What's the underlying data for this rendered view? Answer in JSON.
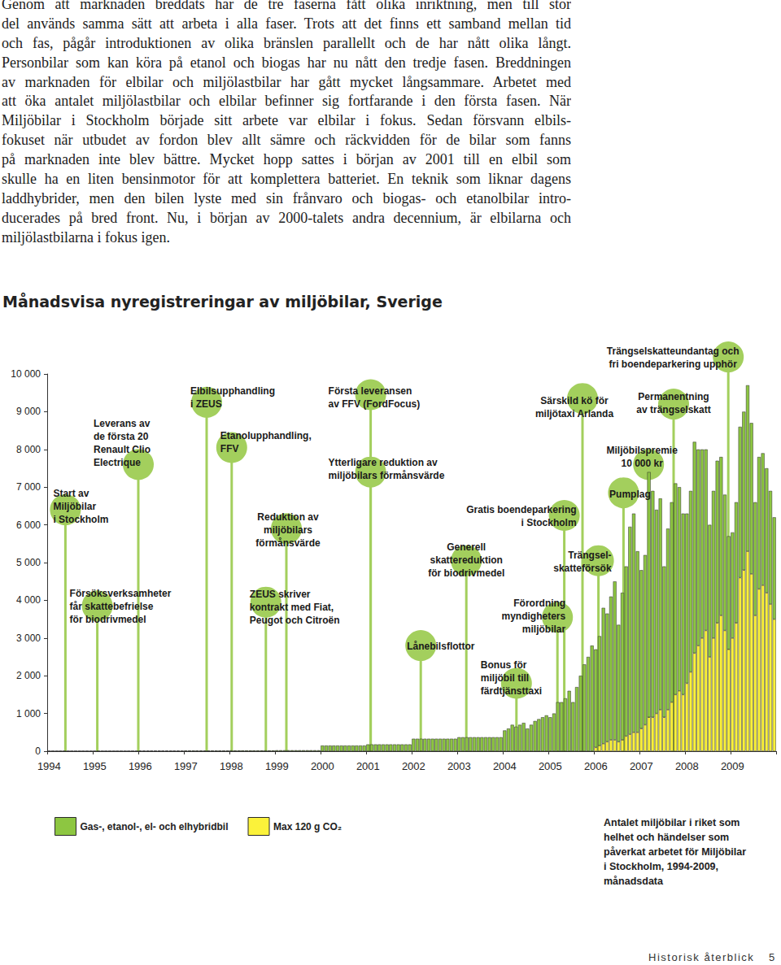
{
  "text": {
    "paragraph_lines": [
      "Genom att marknaden breddats har de tre faserna fått olika inriktning, men till stor",
      "del används samma sätt att arbeta i alla faser. Trots att det finns ett samband mellan tid",
      "och fas, pågår introduktionen av olika bränslen parallellt och de har nått olika långt.",
      "Personbilar som kan köra på etanol och biogas har nu nått den tredje fasen. Breddningen",
      "av marknaden för elbilar och miljölastbilar har gått mycket långsammare. Arbetet med",
      "att öka antalet miljölastbilar och elbilar befinner sig fortfarande i den första fasen. När",
      "Miljöbilar i Stockholm började sitt arbete var elbilar i fokus. Sedan försvann elbils-",
      "fokuset när utbudet av fordon blev allt sämre och räckvidden för de bilar som fanns",
      "på marknaden inte blev bättre. Mycket hopp sattes i början av 2001 till en elbil som",
      "skulle ha en liten bensinmotor för att komplettera batteriet. En teknik som liknar dagens",
      "laddhybrider, men den bilen lyste med sin frånvaro och biogas- och etanolbilar intro-",
      "ducerades på bred front. Nu, i början av 2000-talets andra decennium, är elbilarna och",
      "miljölastbilarna i fokus igen."
    ],
    "caption": "Antalet miljöbilar i riket som\nhelhet och händelser som\npåverkat arbetet för Miljöbilar\ni Stockholm, 1994-2009,\nmånadsdata",
    "footer": "Historisk återblick",
    "page": 5
  },
  "chart_data": {
    "type": "bar",
    "title": "Månadsvisa nyregistreringar av miljöbilar, Sverige",
    "stacked": true,
    "legend": "bottom-left",
    "categories": [
      "1994",
      null,
      null,
      null,
      null,
      null,
      null,
      null,
      null,
      null,
      null,
      null,
      "1995",
      null,
      null,
      null,
      null,
      null,
      null,
      null,
      null,
      null,
      null,
      null,
      "1996",
      null,
      null,
      null,
      null,
      null,
      null,
      null,
      null,
      null,
      null,
      null,
      "1997",
      null,
      null,
      null,
      null,
      null,
      null,
      null,
      null,
      null,
      null,
      null,
      "1998",
      null,
      null,
      null,
      null,
      null,
      null,
      null,
      null,
      null,
      null,
      null,
      "1999",
      null,
      null,
      null,
      null,
      null,
      null,
      null,
      null,
      null,
      null,
      null,
      "2000",
      null,
      null,
      null,
      null,
      null,
      null,
      null,
      null,
      null,
      null,
      null,
      "2001",
      null,
      null,
      null,
      null,
      null,
      null,
      null,
      null,
      null,
      null,
      null,
      "2002",
      null,
      null,
      null,
      null,
      null,
      null,
      null,
      null,
      null,
      null,
      null,
      "2003",
      null,
      null,
      null,
      null,
      null,
      null,
      null,
      null,
      null,
      null,
      null,
      "2004",
      null,
      null,
      null,
      null,
      null,
      null,
      null,
      null,
      null,
      null,
      null,
      "2005",
      null,
      null,
      null,
      null,
      null,
      null,
      null,
      null,
      null,
      null,
      null,
      "2006",
      null,
      null,
      null,
      null,
      null,
      null,
      null,
      null,
      null,
      null,
      null,
      "2007",
      null,
      null,
      null,
      null,
      null,
      null,
      null,
      null,
      null,
      null,
      null,
      "2008",
      null,
      null,
      null,
      null,
      null,
      null,
      null,
      null,
      null,
      null,
      null,
      "2009",
      null,
      null,
      null,
      null,
      null,
      null,
      null,
      null,
      null,
      null,
      null
    ],
    "series": [
      {
        "name": "Gas-, etanol-, el- och elhybridbil",
        "color": "#8dc641",
        "values": [
          0,
          0,
          0,
          0,
          0,
          0,
          0,
          0,
          0,
          0,
          0,
          0,
          0,
          0,
          0,
          0,
          0,
          0,
          0,
          0,
          0,
          0,
          0,
          0,
          10,
          10,
          10,
          10,
          10,
          10,
          10,
          10,
          10,
          10,
          10,
          10,
          15,
          15,
          15,
          15,
          15,
          15,
          15,
          15,
          15,
          15,
          15,
          15,
          20,
          20,
          20,
          20,
          20,
          20,
          20,
          20,
          20,
          20,
          20,
          20,
          25,
          25,
          25,
          25,
          25,
          25,
          25,
          25,
          25,
          25,
          25,
          25,
          150,
          150,
          150,
          150,
          150,
          150,
          150,
          150,
          150,
          150,
          150,
          150,
          180,
          180,
          180,
          180,
          180,
          180,
          180,
          180,
          180,
          180,
          180,
          180,
          330,
          330,
          330,
          330,
          330,
          330,
          330,
          330,
          330,
          330,
          330,
          330,
          370,
          370,
          370,
          370,
          370,
          370,
          370,
          370,
          370,
          370,
          370,
          370,
          550,
          600,
          700,
          650,
          700,
          750,
          600,
          700,
          800,
          850,
          900,
          950,
          900,
          1000,
          1300,
          1300,
          1400,
          1600,
          1300,
          1700,
          2000,
          2300,
          2500,
          2800,
          2600,
          2900,
          3600,
          3400,
          3800,
          4200,
          3100,
          3900,
          4500,
          5500,
          5800,
          4800,
          4200,
          4500,
          6500,
          6000,
          5400,
          5600,
          4000,
          4800,
          5300,
          5600,
          5400,
          4800,
          4500,
          4800,
          5600,
          5200,
          5000,
          4800,
          3500,
          3900,
          4300,
          4200,
          3600,
          3000,
          2800,
          3200,
          4000,
          4200,
          4400,
          4000,
          3000,
          3500,
          3500,
          3300,
          3000,
          2700
        ]
      },
      {
        "name": "Max 120 g CO₂",
        "color": "#fbf23a",
        "values": [
          0,
          0,
          0,
          0,
          0,
          0,
          0,
          0,
          0,
          0,
          0,
          0,
          0,
          0,
          0,
          0,
          0,
          0,
          0,
          0,
          0,
          0,
          0,
          0,
          0,
          0,
          0,
          0,
          0,
          0,
          0,
          0,
          0,
          0,
          0,
          0,
          0,
          0,
          0,
          0,
          0,
          0,
          0,
          0,
          0,
          0,
          0,
          0,
          0,
          0,
          0,
          0,
          0,
          0,
          0,
          0,
          0,
          0,
          0,
          0,
          0,
          0,
          0,
          0,
          0,
          0,
          0,
          0,
          0,
          0,
          0,
          0,
          0,
          0,
          0,
          0,
          0,
          0,
          0,
          0,
          0,
          0,
          0,
          0,
          0,
          0,
          0,
          0,
          0,
          0,
          0,
          0,
          0,
          0,
          0,
          0,
          0,
          0,
          0,
          0,
          0,
          0,
          0,
          0,
          0,
          0,
          0,
          0,
          0,
          0,
          0,
          0,
          0,
          0,
          0,
          0,
          0,
          0,
          0,
          0,
          0,
          0,
          0,
          0,
          0,
          0,
          0,
          0,
          0,
          0,
          0,
          0,
          0,
          0,
          0,
          0,
          0,
          0,
          0,
          0,
          0,
          0,
          0,
          0,
          100,
          150,
          200,
          250,
          300,
          300,
          250,
          300,
          400,
          450,
          500,
          500,
          600,
          700,
          900,
          900,
          1000,
          1100,
          900,
          1100,
          1300,
          1500,
          1600,
          1500,
          1800,
          2100,
          2600,
          2800,
          3000,
          3200,
          2500,
          3000,
          3400,
          3600,
          3200,
          2700,
          3000,
          3400,
          4600,
          4800,
          5300,
          4700,
          3600,
          4300,
          4400,
          4200,
          3900,
          3500
        ]
      }
    ],
    "ylim": [
      0,
      10000
    ],
    "yticks": [
      0,
      {
        "value": 1000,
        "label": "1 000"
      },
      {
        "value": 2000,
        "label": "2 000"
      },
      {
        "value": 3000,
        "label": "3 000"
      },
      {
        "value": 4000,
        "label": "4 000"
      },
      {
        "value": 5000,
        "label": "5 000"
      },
      {
        "value": 6000,
        "label": "6 000"
      },
      {
        "value": 7000,
        "label": "7 000"
      },
      {
        "value": 8000,
        "label": "8 000"
      },
      {
        "value": 9000,
        "label": "9 000"
      },
      {
        "value": 10000,
        "label": "10 000"
      }
    ],
    "annotations": [
      {
        "text": "Start av\nMiljöbilar\ni Stockholm",
        "x": 1994.4,
        "y": 6400
      },
      {
        "text": "Leverans av\nde första 20\nRenault Clio\nElectrique",
        "x": 1996.0,
        "y": 7600
      },
      {
        "text": "Försöksverksamheter\nfår skattebefrielse\nför biodrivmedel",
        "x": 1995.1,
        "y": 3850
      },
      {
        "text": "Elbilsupphandling\ni ZEUS",
        "x": 1997.5,
        "y": 9250
      },
      {
        "text": "Etanolupphandling,\nFFV",
        "x": 1998.05,
        "y": 8050
      },
      {
        "text": "Reduktion av\nmiljöbilars\nförmånsvärde",
        "x": 1999.25,
        "y": 5900
      },
      {
        "text": "ZEUS skriver\nkontrakt med Fiat,\nPeugot och Citroën",
        "x": 1998.8,
        "y": 3950
      },
      {
        "text": "Första leveransen\nav FFV (FordFocus)",
        "x": 2001.1,
        "y": 9450
      },
      {
        "text": "Ytterligare reduktion av\nmiljöbilars förmånsvärde",
        "x": 2001.1,
        "y": 7400
      },
      {
        "text": "Lånebilsflottor",
        "x": 2002.2,
        "y": 2800
      },
      {
        "text": "Generell\nskattereduktion\nför biodrivmedel",
        "x": 2003.2,
        "y": 5050
      },
      {
        "text": "Gratis boendeparkering\ni Stockholm",
        "x": 2005.35,
        "y": 6250
      },
      {
        "text": "Bonus för\nmiljöbil till\nfärdtjänsttaxi",
        "x": 2004.3,
        "y": 1800
      },
      {
        "text": "Förordning\nmyndigheters\nmiljöbilar",
        "x": 2005.2,
        "y": 3550
      },
      {
        "text": "Trängsel-\nskatteförsök",
        "x": 2006.1,
        "y": 5050
      },
      {
        "text": "Särskild kö för\nmiljötaxi Arlanda",
        "x": 2005.75,
        "y": 9350
      },
      {
        "text": "Miljöbilspremie\n10 000 kr",
        "x": 2007.2,
        "y": 7600
      },
      {
        "text": "Pumplag",
        "x": 2006.65,
        "y": 6850
      },
      {
        "text": "Permanentning\nav trängselskatt",
        "x": 2007.75,
        "y": 9200
      },
      {
        "text": "Trängselskatteundantag och\nfri boendeparkering upphör",
        "x": 2008.95,
        "y": 10450
      }
    ]
  }
}
